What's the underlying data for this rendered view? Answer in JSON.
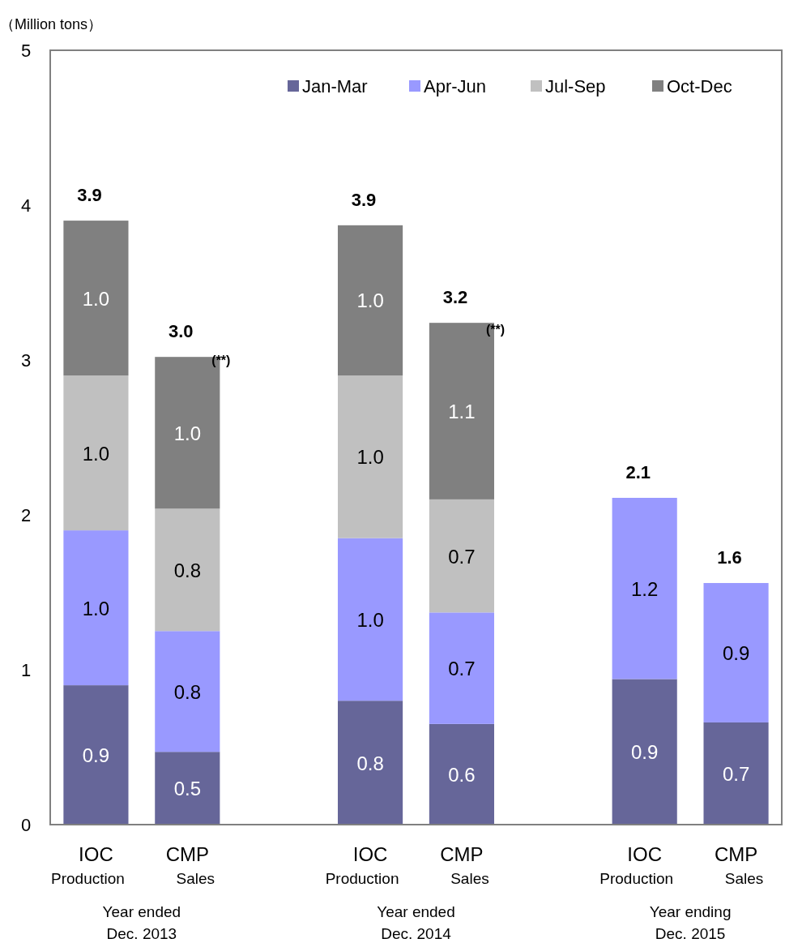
{
  "chart_data": {
    "type": "bar",
    "stacked": true,
    "ylabel": "（Million tons）",
    "categories": [
      "IOC Production",
      "CMP Sales",
      "IOC Production",
      "CMP Sales",
      "IOC Production",
      "CMP Sales"
    ],
    "series": [
      {
        "name": "Jan-Mar",
        "color": "#666699",
        "values": [
          0.9,
          0.47,
          0.8,
          0.65,
          0.94,
          0.66
        ],
        "value_labels": [
          "0.9",
          "0.5",
          "0.8",
          "0.6",
          "0.9",
          "0.7"
        ]
      },
      {
        "name": "Apr-Jun",
        "color": "#9999ff",
        "values": [
          1.0,
          0.78,
          1.05,
          0.72,
          1.17,
          0.9
        ],
        "value_labels": [
          "1.0",
          "0.8",
          "1.0",
          "0.7",
          "1.2",
          "0.9"
        ]
      },
      {
        "name": "Jul-Sep",
        "color": "#c0c0c0",
        "values": [
          1.0,
          0.79,
          1.05,
          0.73,
          null,
          null
        ],
        "value_labels": [
          "1.0",
          "0.8",
          "1.0",
          "0.7",
          null,
          null
        ]
      },
      {
        "name": "Oct-Dec",
        "color": "#808080",
        "values": [
          1.0,
          0.98,
          0.97,
          1.14,
          null,
          null
        ],
        "value_labels": [
          "1.0",
          "1.0",
          "1.0",
          "1.1",
          null,
          null
        ]
      }
    ],
    "totals": [
      "3.9",
      "3.0",
      "3.9",
      "3.2",
      "2.1",
      "1.6"
    ],
    "annotations": [
      {
        "text": "(**)",
        "y": 3.0
      },
      {
        "text": "(**)",
        "y": 3.2
      },
      "Year ended\nDec. 2013",
      "Year ended\nDec. 2014",
      "Year ending\nDec. 2015"
    ],
    "ylim": [
      0,
      5
    ],
    "yticks": [
      0,
      1,
      2,
      3,
      4,
      5
    ],
    "grid": false,
    "legend": "top right"
  }
}
